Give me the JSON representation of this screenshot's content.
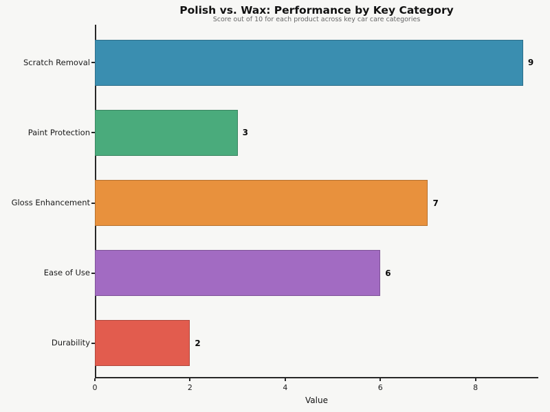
{
  "figure": {
    "background_color": "#f7f7f5",
    "spine_color": "#262626",
    "title_color": "#111111",
    "subtitle_color": "#666666"
  },
  "chart_data": {
    "type": "bar",
    "orientation": "horizontal",
    "title": "Polish vs. Wax: Performance by Key Category",
    "subtitle": "Score out of 10 for each product across key car care categories",
    "categories": [
      "Scratch Removal",
      "Paint Protection",
      "Gloss Enhancement",
      "Ease of Use",
      "Durability"
    ],
    "values": [
      9,
      3,
      7,
      6,
      2
    ],
    "bar_colors": [
      "#3a8eb0",
      "#4aab7c",
      "#e8913d",
      "#a26bc2",
      "#e25c4e"
    ],
    "value_label_color": "#0a0a0a",
    "xlabel": "Value",
    "ylabel": "",
    "xlim": [
      0,
      9.32
    ],
    "xticks": [
      0,
      2,
      4,
      6,
      8
    ],
    "grid": false,
    "legend": null
  }
}
